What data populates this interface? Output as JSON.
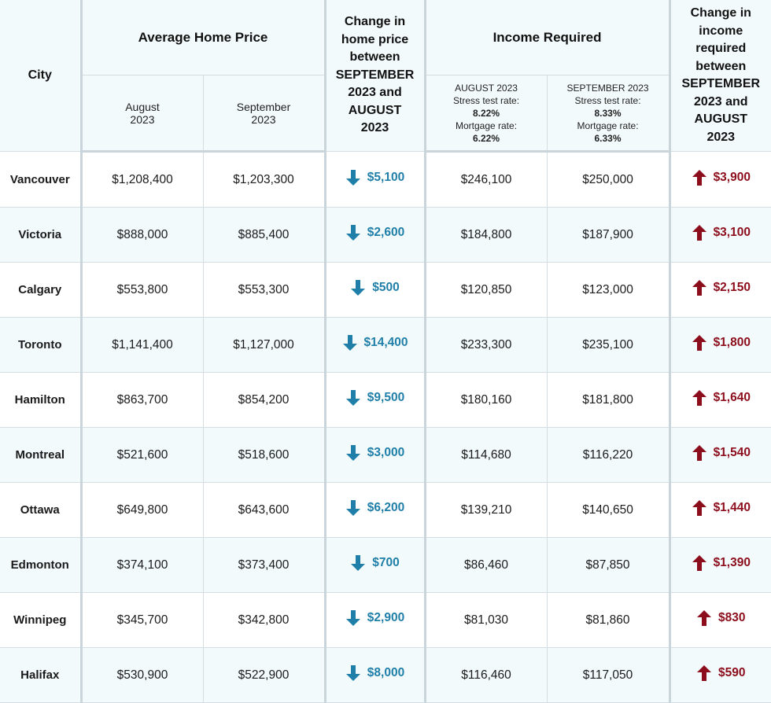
{
  "headers": {
    "city": "City",
    "avg_price": "Average Home Price",
    "aug_line1": "August",
    "aug_line2": "2023",
    "sep_line1": "September",
    "sep_line2": "2023",
    "change_price": [
      "Change in",
      "home price",
      "between",
      "SEPTEMBER",
      "2023 and",
      "AUGUST",
      "2023"
    ],
    "income_required": "Income Required",
    "income_aug": {
      "title": "AUGUST 2023",
      "stress_label": "Stress test rate:",
      "stress_value": "8.22%",
      "mortgage_label": "Mortgage rate:",
      "mortgage_value": "6.22%"
    },
    "income_sep": {
      "title": "SEPTEMBER 2023",
      "stress_label": "Stress test rate:",
      "stress_value": "8.33%",
      "mortgage_label": "Mortgage rate:",
      "mortgage_value": "6.33%"
    },
    "change_income": [
      "Change in",
      "income",
      "required",
      "between",
      "SEPTEMBER",
      "2023 and",
      "AUGUST",
      "2023"
    ]
  },
  "colors": {
    "decrease": "#1f7fa8",
    "increase": "#8c0d1c",
    "header_bg": "#f3fafb",
    "border": "#d4dde2"
  },
  "icons": {
    "decrease": "arrow-down-icon",
    "increase": "arrow-up-icon"
  },
  "chart_data": {
    "type": "table",
    "columns": [
      "City",
      "Average Home Price August 2023",
      "Average Home Price September 2023",
      "Change in home price",
      "Income Required August 2023",
      "Income Required September 2023",
      "Change in income required"
    ],
    "rows": [
      {
        "city": "Vancouver",
        "price_aug": "$1,208,400",
        "price_sep": "$1,203,300",
        "price_change": "$5,100",
        "price_dir": "down",
        "income_aug": "$246,100",
        "income_sep": "$250,000",
        "income_change": "$3,900",
        "income_dir": "up"
      },
      {
        "city": "Victoria",
        "price_aug": "$888,000",
        "price_sep": "$885,400",
        "price_change": "$2,600",
        "price_dir": "down",
        "income_aug": "$184,800",
        "income_sep": "$187,900",
        "income_change": "$3,100",
        "income_dir": "up"
      },
      {
        "city": "Calgary",
        "price_aug": "$553,800",
        "price_sep": "$553,300",
        "price_change": "$500",
        "price_dir": "down",
        "income_aug": "$120,850",
        "income_sep": "$123,000",
        "income_change": "$2,150",
        "income_dir": "up"
      },
      {
        "city": "Toronto",
        "price_aug": "$1,141,400",
        "price_sep": "$1,127,000",
        "price_change": "$14,400",
        "price_dir": "down",
        "income_aug": "$233,300",
        "income_sep": "$235,100",
        "income_change": "$1,800",
        "income_dir": "up"
      },
      {
        "city": "Hamilton",
        "price_aug": "$863,700",
        "price_sep": "$854,200",
        "price_change": "$9,500",
        "price_dir": "down",
        "income_aug": "$180,160",
        "income_sep": "$181,800",
        "income_change": "$1,640",
        "income_dir": "up"
      },
      {
        "city": "Montreal",
        "price_aug": "$521,600",
        "price_sep": "$518,600",
        "price_change": "$3,000",
        "price_dir": "down",
        "income_aug": "$114,680",
        "income_sep": "$116,220",
        "income_change": "$1,540",
        "income_dir": "up"
      },
      {
        "city": "Ottawa",
        "price_aug": "$649,800",
        "price_sep": "$643,600",
        "price_change": "$6,200",
        "price_dir": "down",
        "income_aug": "$139,210",
        "income_sep": "$140,650",
        "income_change": "$1,440",
        "income_dir": "up"
      },
      {
        "city": "Edmonton",
        "price_aug": "$374,100",
        "price_sep": "$373,400",
        "price_change": "$700",
        "price_dir": "down",
        "income_aug": "$86,460",
        "income_sep": "$87,850",
        "income_change": "$1,390",
        "income_dir": "up"
      },
      {
        "city": "Winnipeg",
        "price_aug": "$345,700",
        "price_sep": "$342,800",
        "price_change": "$2,900",
        "price_dir": "down",
        "income_aug": "$81,030",
        "income_sep": "$81,860",
        "income_change": "$830",
        "income_dir": "up"
      },
      {
        "city": "Halifax",
        "price_aug": "$530,900",
        "price_sep": "$522,900",
        "price_change": "$8,000",
        "price_dir": "down",
        "income_aug": "$116,460",
        "income_sep": "$117,050",
        "income_change": "$590",
        "income_dir": "up"
      }
    ]
  }
}
